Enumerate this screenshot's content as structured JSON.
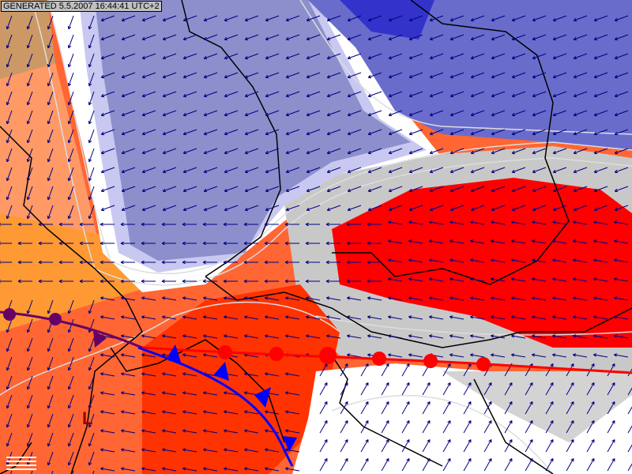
{
  "header": {
    "generated_label": "GENERATED 5.5.2007 16:44:41 UTC+2"
  },
  "map": {
    "low_pressure_symbol": "L",
    "colors": {
      "deep_blue": "#3333cc",
      "blue": "#6a6ccc",
      "lavender": "#8c8fcc",
      "light_lavender": "#c8c8f0",
      "white": "#ffffff",
      "grey": "#c8c8c8",
      "red": "#ff0000",
      "red_orange": "#ff3300",
      "orange_red": "#ff6633",
      "orange": "#ff9933",
      "light_orange": "#ff9966",
      "brown": "#cc9966",
      "arrow": "#000080",
      "border": "#000000",
      "cold_front": "#0000ff",
      "warm_front": "#ff0000",
      "occluded_front": "#660066",
      "low_marker": "#990000"
    },
    "fronts": [
      "cold-front",
      "warm-front",
      "occluded-front"
    ]
  }
}
